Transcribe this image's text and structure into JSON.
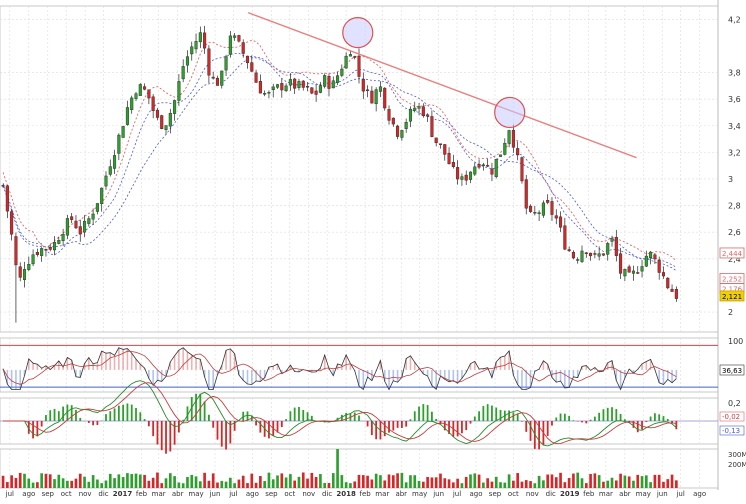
{
  "chart_data": {
    "type": "candlestick",
    "main_panel": {
      "ylim": [
        1.85,
        4.3
      ],
      "yticks": [
        "4,2",
        "3,8",
        "3,6",
        "3,4",
        "3,2",
        "3",
        "2,8",
        "2,6",
        "2,4",
        "2"
      ],
      "ytick_values": [
        4.2,
        3.8,
        3.6,
        3.4,
        3.2,
        3.0,
        2.8,
        2.6,
        2.4,
        2.0
      ],
      "price_tags": [
        {
          "label": "2,444",
          "value": 2.444,
          "color": "#e06666"
        },
        {
          "label": "2,252",
          "value": 2.252,
          "color": "#e06666"
        },
        {
          "label": "2,176",
          "value": 2.176,
          "color": "#e06666"
        },
        {
          "label": "2,121",
          "value": 2.121,
          "color": "#f0d000"
        }
      ],
      "trendline": {
        "start": [
          "2017-07-25",
          4.25
        ],
        "end": [
          "2019-04-20",
          3.16
        ],
        "color": "#e88080"
      },
      "circles": [
        {
          "date": "2018-01-20",
          "value": 4.1
        },
        {
          "date": "2018-09-25",
          "value": 3.5
        }
      ],
      "close_series": [
        [
          "2016-06-20",
          2.95
        ],
        [
          "2016-07-05",
          2.55
        ],
        [
          "2016-07-15",
          2.2
        ],
        [
          "2016-07-25",
          2.35
        ],
        [
          "2016-08-10",
          2.45
        ],
        [
          "2016-08-25",
          2.48
        ],
        [
          "2016-09-10",
          2.5
        ],
        [
          "2016-09-25",
          2.62
        ],
        [
          "2016-10-10",
          2.7
        ],
        [
          "2016-10-25",
          2.6
        ],
        [
          "2016-11-10",
          2.72
        ],
        [
          "2016-11-25",
          2.88
        ],
        [
          "2016-12-10",
          3.1
        ],
        [
          "2016-12-25",
          3.3
        ],
        [
          "2017-01-10",
          3.55
        ],
        [
          "2017-01-25",
          3.7
        ],
        [
          "2017-02-10",
          3.65
        ],
        [
          "2017-02-25",
          3.45
        ],
        [
          "2017-03-10",
          3.4
        ],
        [
          "2017-03-25",
          3.55
        ],
        [
          "2017-04-10",
          3.85
        ],
        [
          "2017-04-25",
          4.0
        ],
        [
          "2017-05-10",
          4.1
        ],
        [
          "2017-05-25",
          3.75
        ],
        [
          "2017-06-10",
          3.72
        ],
        [
          "2017-06-25",
          4.1
        ],
        [
          "2017-07-10",
          4.0
        ],
        [
          "2017-07-25",
          3.88
        ],
        [
          "2017-08-10",
          3.7
        ],
        [
          "2017-08-25",
          3.62
        ],
        [
          "2017-09-10",
          3.68
        ],
        [
          "2017-09-25",
          3.72
        ],
        [
          "2017-10-10",
          3.7
        ],
        [
          "2017-10-25",
          3.68
        ],
        [
          "2017-11-10",
          3.62
        ],
        [
          "2017-11-25",
          3.75
        ],
        [
          "2017-12-10",
          3.7
        ],
        [
          "2017-12-25",
          3.85
        ],
        [
          "2018-01-10",
          4.0
        ],
        [
          "2018-01-25",
          3.72
        ],
        [
          "2018-02-10",
          3.6
        ],
        [
          "2018-02-25",
          3.7
        ],
        [
          "2018-03-10",
          3.5
        ],
        [
          "2018-03-25",
          3.35
        ],
        [
          "2018-04-10",
          3.45
        ],
        [
          "2018-04-25",
          3.55
        ],
        [
          "2018-05-10",
          3.5
        ],
        [
          "2018-05-25",
          3.3
        ],
        [
          "2018-06-10",
          3.2
        ],
        [
          "2018-06-25",
          3.05
        ],
        [
          "2018-07-10",
          2.98
        ],
        [
          "2018-07-25",
          3.08
        ],
        [
          "2018-08-10",
          3.15
        ],
        [
          "2018-08-25",
          3.05
        ],
        [
          "2018-09-10",
          3.2
        ],
        [
          "2018-09-25",
          3.4
        ],
        [
          "2018-10-10",
          3.1
        ],
        [
          "2018-10-25",
          2.7
        ],
        [
          "2018-11-10",
          2.75
        ],
        [
          "2018-11-25",
          2.8
        ],
        [
          "2018-12-10",
          2.7
        ],
        [
          "2018-12-25",
          2.5
        ],
        [
          "2019-01-10",
          2.4
        ],
        [
          "2019-01-25",
          2.5
        ],
        [
          "2019-02-10",
          2.4
        ],
        [
          "2019-02-25",
          2.45
        ],
        [
          "2019-03-10",
          2.55
        ],
        [
          "2019-03-25",
          2.3
        ],
        [
          "2019-04-10",
          2.25
        ],
        [
          "2019-04-25",
          2.35
        ],
        [
          "2019-05-10",
          2.45
        ],
        [
          "2019-05-25",
          2.35
        ],
        [
          "2019-06-10",
          2.2
        ],
        [
          "2019-06-25",
          2.12
        ]
      ]
    },
    "x_axis": {
      "range": [
        "2016-06-15",
        "2019-08-31"
      ],
      "labels": [
        {
          "label": "jul",
          "date": "2016-07-01"
        },
        {
          "label": "ago",
          "date": "2016-08-01"
        },
        {
          "label": "sep",
          "date": "2016-09-01"
        },
        {
          "label": "oct",
          "date": "2016-10-01"
        },
        {
          "label": "nov",
          "date": "2016-11-01"
        },
        {
          "label": "dic",
          "date": "2016-12-01"
        },
        {
          "label": "2017",
          "date": "2017-01-01",
          "bold": true
        },
        {
          "label": "feb",
          "date": "2017-02-01"
        },
        {
          "label": "mar",
          "date": "2017-03-01"
        },
        {
          "label": "abr",
          "date": "2017-04-01"
        },
        {
          "label": "may",
          "date": "2017-05-01"
        },
        {
          "label": "jun",
          "date": "2017-06-01"
        },
        {
          "label": "jul",
          "date": "2017-07-01"
        },
        {
          "label": "ago",
          "date": "2017-08-01"
        },
        {
          "label": "sep",
          "date": "2017-09-01"
        },
        {
          "label": "oct",
          "date": "2017-10-01"
        },
        {
          "label": "nov",
          "date": "2017-11-01"
        },
        {
          "label": "dic",
          "date": "2017-12-01"
        },
        {
          "label": "2018",
          "date": "2018-01-01",
          "bold": true
        },
        {
          "label": "feb",
          "date": "2018-02-01"
        },
        {
          "label": "mar",
          "date": "2018-03-01"
        },
        {
          "label": "abr",
          "date": "2018-04-01"
        },
        {
          "label": "may",
          "date": "2018-05-01"
        },
        {
          "label": "jun",
          "date": "2018-06-01"
        },
        {
          "label": "jul",
          "date": "2018-07-01"
        },
        {
          "label": "ago",
          "date": "2018-08-01"
        },
        {
          "label": "sep",
          "date": "2018-09-01"
        },
        {
          "label": "oct",
          "date": "2018-10-01"
        },
        {
          "label": "nov",
          "date": "2018-11-01"
        },
        {
          "label": "dic",
          "date": "2018-12-01"
        },
        {
          "label": "2019",
          "date": "2019-01-01",
          "bold": true
        },
        {
          "label": "feb",
          "date": "2019-02-01"
        },
        {
          "label": "mar",
          "date": "2019-03-01"
        },
        {
          "label": "abr",
          "date": "2019-04-01"
        },
        {
          "label": "may",
          "date": "2019-05-01"
        },
        {
          "label": "jun",
          "date": "2019-06-01"
        },
        {
          "label": "jul",
          "date": "2019-07-01"
        },
        {
          "label": "ago",
          "date": "2019-08-01"
        }
      ]
    },
    "indicator_panel_1": {
      "ytick": "100",
      "value_tags": [
        "36,63"
      ],
      "upper_line_color": "#e04040",
      "lower_line_color": "#4060d0"
    },
    "indicator_panel_2": {
      "ytick": "0,2",
      "value_tags": [
        "-0,02",
        "-0,13"
      ]
    },
    "volume_panel": {
      "yticks": [
        "300M",
        "200M"
      ],
      "spike_date": "2017-12-20"
    },
    "colors": {
      "up_candle": "#2ca02c",
      "down_candle": "#d62728",
      "ma_red": "#e06666",
      "ma_blue": "#4a5bd0",
      "trendline": "#e88080",
      "circle_fill": "#c8cbff",
      "circle_stroke": "#e05050",
      "grid": "#dcdcdc"
    }
  }
}
